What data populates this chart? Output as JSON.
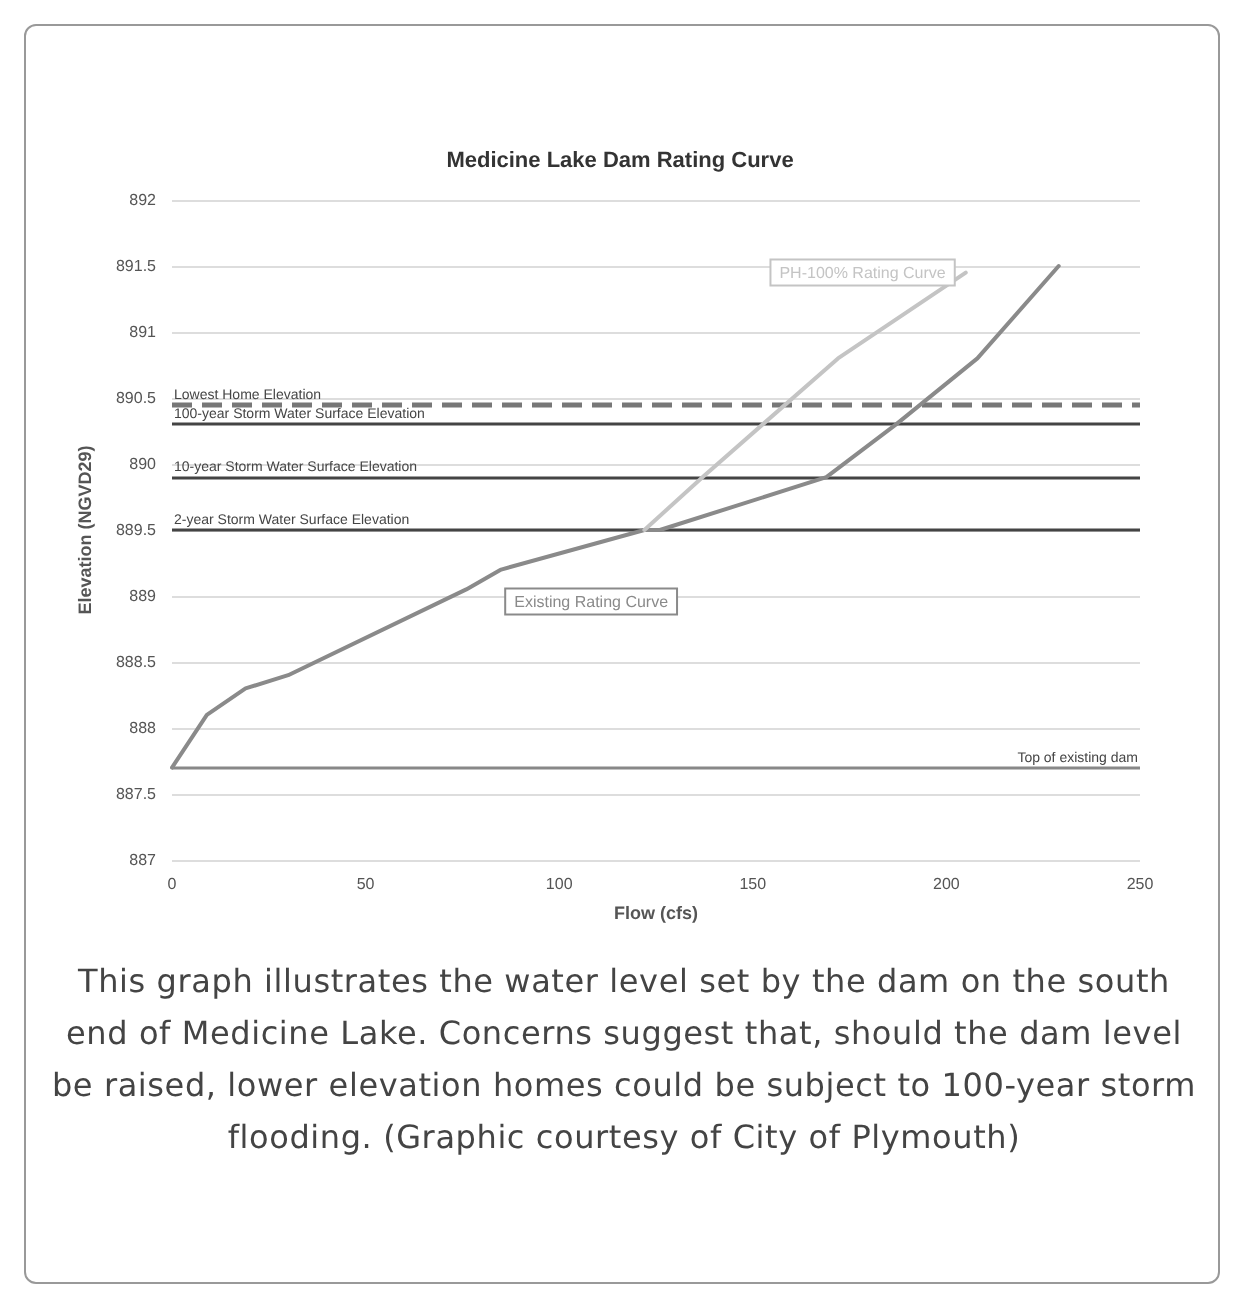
{
  "chart_data": {
    "type": "line",
    "title": "Medicine Lake Dam Rating Curve",
    "xlabel": "Flow (cfs)",
    "ylabel": "Elevation (NGVD29)",
    "xlim": [
      0,
      250
    ],
    "xticks": [
      0,
      50,
      100,
      150,
      200,
      250
    ],
    "ylim": [
      887,
      892
    ],
    "yticks": [
      887,
      {
        "value": 887.5,
        "label": "887.5"
      },
      888,
      {
        "value": 888.5,
        "label": "888.5"
      },
      889,
      {
        "value": 889.5,
        "label": "889.5"
      },
      890,
      {
        "value": 890.5,
        "label": "890.5"
      },
      891,
      {
        "value": 891.5,
        "label": "891.5"
      },
      892
    ],
    "grid": "y",
    "legend": false,
    "marker": "none",
    "line_style": "solid",
    "series": [
      {
        "name": "Existing Rating Curve",
        "color": "#8a8a8a",
        "x": [
          0,
          9,
          19,
          30,
          76,
          85,
          122,
          126,
          169,
          187,
          208,
          229
        ],
        "values": [
          887.7,
          888.1,
          888.3,
          888.4,
          889.05,
          889.2,
          889.5,
          889.5,
          889.9,
          890.3,
          890.8,
          891.5
        ]
      },
      {
        "name": "PH-100% Rating Curve",
        "color": "#c4c4c4",
        "x": [
          122,
          137,
          172,
          205
        ],
        "values": [
          889.5,
          889.9,
          890.8,
          891.45
        ]
      }
    ],
    "ref_lines": [
      {
        "axis": "y",
        "value": 890.45,
        "label": "Lowest Home Elevation",
        "color": "#777777",
        "line_style": "dashed"
      },
      {
        "axis": "y",
        "value": 890.3,
        "label": "100-year Storm Water Surface Elevation",
        "color": "#444444",
        "line_style": "solid"
      },
      {
        "axis": "y",
        "value": 889.9,
        "label": "10-year Storm Water Surface Elevation",
        "color": "#444444",
        "line_style": "solid"
      },
      {
        "axis": "y",
        "value": 889.5,
        "label": "2-year Storm Water Surface Elevation",
        "color": "#444444",
        "line_style": "solid"
      },
      {
        "axis": "y",
        "value": 887.7,
        "label": "Top of existing dam",
        "color": "#888888",
        "line_style": "solid"
      }
    ],
    "annotations": [
      "This graph illustrates the water level set by the dam on the south end of Medicine Lake. Concerns suggest that, should the dam level be raised, lower elevation homes could be subject to 100-year storm flooding. (Graphic courtesy of City of Plymouth)"
    ]
  }
}
